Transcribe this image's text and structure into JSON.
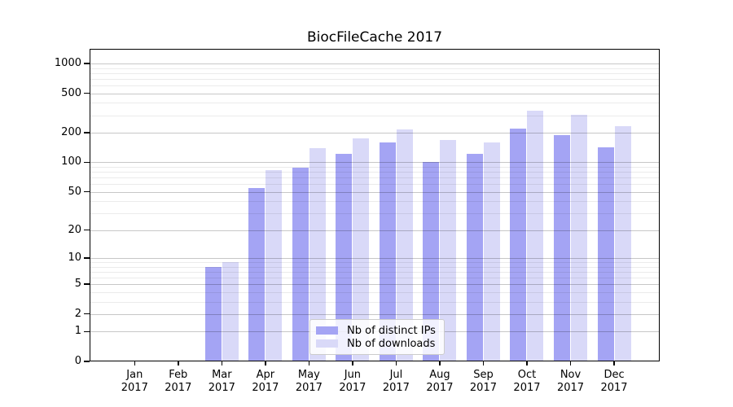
{
  "chart_data": {
    "type": "bar",
    "title": "BiocFileCache 2017",
    "x_months": [
      "Jan",
      "Feb",
      "Mar",
      "Apr",
      "May",
      "Jun",
      "Jul",
      "Aug",
      "Sep",
      "Oct",
      "Nov",
      "Dec"
    ],
    "x_year": "2017",
    "series": [
      {
        "key": "distinct-ips",
        "name": "Nb of distinct IPs",
        "color": "#a4a4f4",
        "values": [
          0,
          0,
          8,
          55,
          88,
          123,
          160,
          101,
          121,
          222,
          190,
          141
        ]
      },
      {
        "key": "downloads",
        "name": "Nb of downloads",
        "color": "#d9d9f8",
        "values": [
          0,
          0,
          9,
          83,
          140,
          174,
          216,
          170,
          159,
          333,
          303,
          234
        ]
      }
    ],
    "y_scale": "log10(1+value)",
    "y_ticks": [
      1000,
      500,
      200,
      100,
      50,
      20,
      10,
      5,
      2,
      1,
      0
    ],
    "y_minor_gridlines": [
      3,
      4,
      6,
      7,
      8,
      9,
      30,
      40,
      60,
      70,
      80,
      90,
      300,
      400,
      600,
      700,
      800,
      900
    ],
    "ylim": [
      0,
      1400
    ],
    "grid": "on",
    "legend_position": "lower-center"
  }
}
